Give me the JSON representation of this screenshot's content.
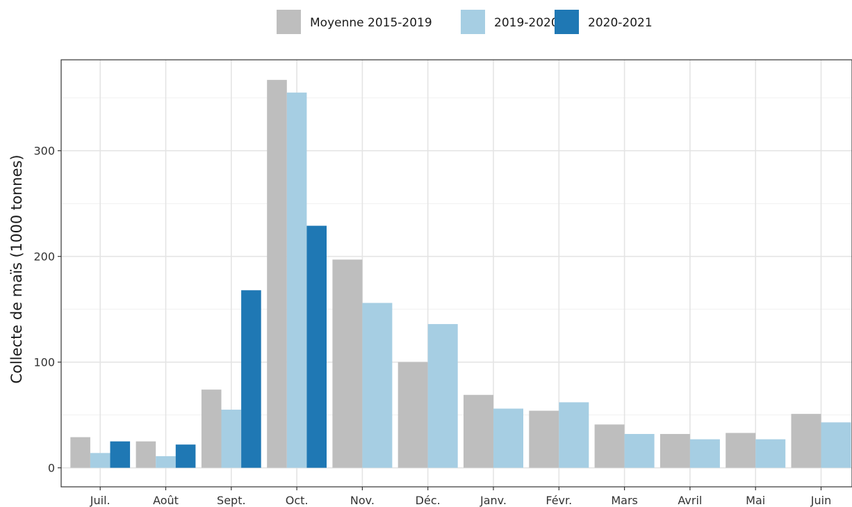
{
  "chart_data": {
    "type": "bar",
    "categories": [
      "Juil.",
      "Août",
      "Sept.",
      "Oct.",
      "Nov.",
      "Déc.",
      "Janv.",
      "Févr.",
      "Mars",
      "Avril",
      "Mai",
      "Juin"
    ],
    "series": [
      {
        "name": "Moyenne 2015-2019",
        "color": "#bebebe",
        "values": [
          29,
          25,
          74,
          367,
          197,
          100,
          69,
          54,
          41,
          32,
          33,
          51
        ]
      },
      {
        "name": "2019-2020",
        "color": "#a6cee3",
        "values": [
          14,
          11,
          55,
          355,
          156,
          136,
          56,
          62,
          32,
          27,
          27,
          43
        ]
      },
      {
        "name": "2020-2021",
        "color": "#1f78b4",
        "values": [
          25,
          22,
          168,
          229,
          null,
          null,
          null,
          null,
          null,
          null,
          null,
          null
        ]
      }
    ],
    "title": "",
    "xlabel": "",
    "ylabel": "Collecte de maïs (1000 tonnes)",
    "ylim": [
      -18,
      386
    ],
    "yticks": [
      0,
      100,
      200,
      300
    ],
    "grid": true,
    "legend_position": "top"
  }
}
